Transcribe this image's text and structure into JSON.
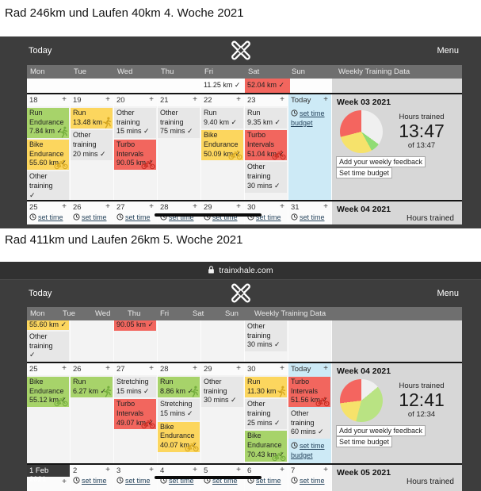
{
  "titles": {
    "s1": "Rad 246km und Laufen 40km 4. Woche 2021",
    "s2": "Rad 411km und Laufen 26km 5. Woche 2021"
  },
  "browser": {
    "address": "trainxhale.com"
  },
  "toolbar": {
    "today": "Today",
    "menu": "Menu"
  },
  "calendar": {
    "day_headers": [
      "Mon",
      "Tue",
      "Wed",
      "Thu",
      "Fri",
      "Sat",
      "Sun"
    ],
    "weekly_header": "Weekly Training Data"
  },
  "links": {
    "set_time_budget": "set time budget"
  },
  "s1": {
    "peek_top": {
      "fri": "11.25 km ✓",
      "sat": "52.04 km ✓"
    },
    "week03": {
      "days": [
        {
          "date": "18",
          "events": [
            {
              "title": "Run Endurance",
              "value": "7.84 km ✓",
              "color": "green",
              "icon": "runner"
            },
            {
              "title": "Bike Endurance",
              "value": "55.60 km ✓",
              "color": "yellow",
              "icon": "bike"
            },
            {
              "title": "Other training",
              "value": "✓",
              "color": "gray"
            }
          ]
        },
        {
          "date": "19",
          "events": [
            {
              "title": "Run",
              "value": "13.48 km ✓",
              "color": "yellow",
              "icon": "runner"
            },
            {
              "title": "Other training",
              "value": "20 mins ✓",
              "color": "gray"
            }
          ]
        },
        {
          "date": "20",
          "events": [
            {
              "title": "Other training",
              "value": "15 mins ✓",
              "color": "gray"
            },
            {
              "title": "Turbo Intervals",
              "value": "90.05 km ✓",
              "color": "red",
              "icon": "bike"
            }
          ]
        },
        {
          "date": "21",
          "events": [
            {
              "title": "Other training",
              "value": "75 mins ✓",
              "color": "gray"
            }
          ]
        },
        {
          "date": "22",
          "events": [
            {
              "title": "Run",
              "value": "9.40 km ✓",
              "color": "gray"
            },
            {
              "title": "Bike Endurance",
              "value": "50.09 km ✓",
              "color": "yellow",
              "icon": "bike"
            }
          ]
        },
        {
          "date": "23",
          "events": [
            {
              "title": "Run",
              "value": "9.35 km ✓",
              "color": "gray"
            },
            {
              "title": "Turbo Intervals",
              "value": "51.04 km ✓",
              "color": "red",
              "icon": "bike"
            },
            {
              "title": "Other training",
              "value": "30 mins ✓",
              "color": "gray"
            }
          ]
        },
        {
          "date": "Today",
          "today": true,
          "events": [],
          "link": "set time budget"
        }
      ],
      "panel": {
        "week": "Week 03 2021",
        "hours_label": "Hours trained",
        "hours": "13:47",
        "of": "of 13:47",
        "feedback": "Add your weekly feedback",
        "budget": "Set time budget"
      }
    },
    "week04_peek": {
      "week": "Week 04 2021",
      "dates": [
        "25",
        "26",
        "27",
        "28",
        "29",
        "30",
        "31"
      ],
      "set_time": "set time",
      "hours_label": "Hours trained"
    }
  },
  "s2": {
    "peek_top": {
      "mon_value": "55.60 km ✓",
      "mon_other_title": "Other training",
      "mon_other_value": "✓",
      "wed_value": "90.05 km ✓",
      "sat_title": "Other training",
      "sat_value": "30 mins ✓"
    },
    "week04": {
      "days": [
        {
          "date": "25",
          "events": [
            {
              "title": "Bike Endurance",
              "value": "55.12 km ✓",
              "color": "green",
              "icon": "bike"
            }
          ]
        },
        {
          "date": "26",
          "events": [
            {
              "title": "Run",
              "value": "6.27 km ✓",
              "color": "green",
              "icon": "runner"
            }
          ]
        },
        {
          "date": "27",
          "events": [
            {
              "title": "Stretching",
              "value": "15 mins ✓",
              "color": "gray"
            },
            {
              "title": "Turbo Intervals",
              "value": "49.07 km ✓",
              "color": "red",
              "icon": "bike"
            }
          ]
        },
        {
          "date": "28",
          "events": [
            {
              "title": "Run",
              "value": "8.86 km ✓",
              "color": "green",
              "icon": "runner"
            },
            {
              "title": "Stretching",
              "value": "15 mins ✓",
              "color": "gray"
            },
            {
              "title": "Bike Endurance",
              "value": "40.07 km ✓",
              "color": "yellow",
              "icon": "bike"
            }
          ]
        },
        {
          "date": "29",
          "events": [
            {
              "title": "Other training",
              "value": "30 mins ✓",
              "color": "gray"
            }
          ]
        },
        {
          "date": "30",
          "events": [
            {
              "title": "Run",
              "value": "11.30 km ✓",
              "color": "yellow",
              "icon": "runner"
            },
            {
              "title": "Other training",
              "value": "25 mins ✓",
              "color": "gray"
            },
            {
              "title": "Bike Endurance",
              "value": "70.43 km ✓",
              "color": "green",
              "icon": "bike"
            }
          ]
        },
        {
          "date": "Today",
          "today": true,
          "events": [
            {
              "title": "Turbo Intervals",
              "value": "51.56 km ✓",
              "color": "red",
              "icon": "bike"
            },
            {
              "title": "Other training",
              "value": "60 mins ✓",
              "color": "gray"
            }
          ],
          "link": "set time budget"
        }
      ],
      "panel": {
        "week": "Week 04 2021",
        "hours_label": "Hours trained",
        "hours": "12:41",
        "of": "of 12:34",
        "feedback": "Add your weekly feedback",
        "budget": "Set time budget"
      }
    },
    "week05_peek": {
      "week": "Week 05 2021",
      "first_date": "1 Feb 2021",
      "dates": [
        "2",
        "3",
        "4",
        "5",
        "6",
        "7"
      ],
      "set_time": "set time",
      "hours_label": "Hours trained"
    }
  },
  "colors": {
    "event_green": "#a7d36a",
    "event_yellow": "#fcd65e",
    "event_red": "#f2665e",
    "event_gray": "#e7e7e7",
    "today_blue": "#cdeaf6",
    "frame_dark": "#3d3d3d",
    "weekly_panel_bg": "#d7d7d7"
  },
  "chart_data": [
    {
      "type": "pie",
      "title": "Week 03 2021 hours trained distribution",
      "annotation": "Hours trained 13:47 of 13:47",
      "legend": false,
      "slices": [
        {
          "label": "rest-white",
          "value": 35,
          "color": "#f0f0f0"
        },
        {
          "label": "easy-green",
          "value": 7,
          "color": "#8fdc74"
        },
        {
          "label": "moderate-yellow",
          "value": 29,
          "color": "#f6e26b"
        },
        {
          "label": "intense-red",
          "value": 29,
          "color": "#f4655f"
        }
      ]
    },
    {
      "type": "pie",
      "title": "Week 04 2021 hours trained distribution",
      "annotation": "Hours trained 12:41 of 12:34",
      "legend": false,
      "slices": [
        {
          "label": "rest-white",
          "value": 14,
          "color": "#f0f0f0"
        },
        {
          "label": "easy-green",
          "value": 40,
          "color": "#b9e383"
        },
        {
          "label": "moderate-yellow",
          "value": 19,
          "color": "#f6e26b"
        },
        {
          "label": "intense-red",
          "value": 27,
          "color": "#f4655f"
        }
      ]
    }
  ]
}
